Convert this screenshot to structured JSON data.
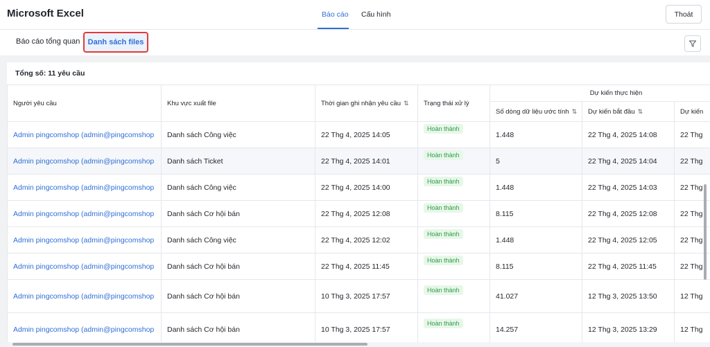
{
  "app": {
    "title": "Microsoft Excel"
  },
  "nav": {
    "tabs": [
      {
        "label": "Báo cáo"
      },
      {
        "label": "Cấu hình"
      }
    ],
    "logout_label": "Thoát"
  },
  "subtabs": [
    {
      "label": "Báo cáo tổng quan"
    },
    {
      "label": "Danh sách files"
    }
  ],
  "icons": {
    "filter": "filter-icon",
    "sort": "sort-icon"
  },
  "colors": {
    "accent": "#2f6fd6",
    "status_bg": "#e7f7e9",
    "status_text": "#2e9b46",
    "highlight_border": "#e53935"
  },
  "summary": {
    "total_label": "Tổng số: 11 yêu cầu"
  },
  "table": {
    "group_header": "Dự kiến thực hiện",
    "columns": {
      "requester": "Người yêu cầu",
      "export_area": "Khu vực xuất file",
      "received_time": "Thời gian ghi nhận yêu cầu",
      "status": "Trạng thái xử lý",
      "row_count": "Số dòng dữ liệu ước tính",
      "start": "Dự kiến bắt đầu",
      "end": "Dự kiến"
    },
    "rows": [
      {
        "requester": "Admin pingcomshop (admin@pingcomshop",
        "area": "Danh sách Công việc",
        "time": "22 Thg 4, 2025 14:05",
        "status": "Hoàn thành",
        "rows": "1.448",
        "start": "22 Thg 4, 2025 14:08",
        "end": "22 Thg"
      },
      {
        "requester": "Admin pingcomshop (admin@pingcomshop",
        "area": "Danh sách Ticket",
        "time": "22 Thg 4, 2025 14:01",
        "status": "Hoàn thành",
        "rows": "5",
        "start": "22 Thg 4, 2025 14:04",
        "end": "22 Thg"
      },
      {
        "requester": "Admin pingcomshop (admin@pingcomshop",
        "area": "Danh sách Công việc",
        "time": "22 Thg 4, 2025 14:00",
        "status": "Hoàn thành",
        "rows": "1.448",
        "start": "22 Thg 4, 2025 14:03",
        "end": "22 Thg"
      },
      {
        "requester": "Admin pingcomshop (admin@pingcomshop",
        "area": "Danh sách Cơ hội bán",
        "time": "22 Thg 4, 2025 12:08",
        "status": "Hoàn thành",
        "rows": "8.115",
        "start": "22 Thg 4, 2025 12:08",
        "end": "22 Thg"
      },
      {
        "requester": "Admin pingcomshop (admin@pingcomshop",
        "area": "Danh sách Công việc",
        "time": "22 Thg 4, 2025 12:02",
        "status": "Hoàn thành",
        "rows": "1.448",
        "start": "22 Thg 4, 2025 12:05",
        "end": "22 Thg"
      },
      {
        "requester": "Admin pingcomshop (admin@pingcomshop",
        "area": "Danh sách Cơ hội bán",
        "time": "22 Thg 4, 2025 11:45",
        "status": "Hoàn thành",
        "rows": "8.115",
        "start": "22 Thg 4, 2025 11:45",
        "end": "22 Thg"
      },
      {
        "requester": "Admin pingcomshop (admin@pingcomshop",
        "area": "Danh sách Cơ hội bán",
        "time": "10 Thg 3, 2025 17:57",
        "status": "Hoàn thành",
        "rows": "41.027",
        "start": "12 Thg 3, 2025 13:50",
        "end": "12 Thg"
      },
      {
        "requester": "Admin pingcomshop (admin@pingcomshop",
        "area": "Danh sách Cơ hội bán",
        "time": "10 Thg 3, 2025 17:57",
        "status": "Hoàn thành",
        "rows": "14.257",
        "start": "12 Thg 3, 2025 13:29",
        "end": "12 Thg"
      }
    ]
  }
}
